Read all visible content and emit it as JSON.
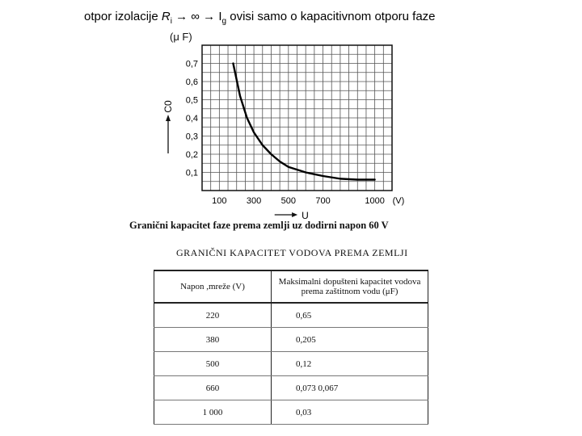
{
  "header": {
    "prefix": "otpor izolacije ",
    "ri": "R",
    "ri_sub": "i",
    "arrow1": " → ∞  → I",
    "ig_sub": "g",
    "rest": " ovisi samo o kapacitivnom otporu faze"
  },
  "chart_data": {
    "type": "line",
    "title": "",
    "ylabel": "C0",
    "yunit": "(μ F)",
    "xlabel": "U",
    "xunit": "(V)",
    "xticks": [
      "100",
      "300",
      "500",
      "700",
      "1000"
    ],
    "yticks": [
      "0,1",
      "0,2",
      "0,3",
      "0,4",
      "0,5",
      "0,6",
      "0,7"
    ],
    "xlim": [
      0,
      1100
    ],
    "ylim": [
      0,
      0.8
    ],
    "grid": true,
    "series": [
      {
        "name": "",
        "x": [
          180,
          220,
          260,
          300,
          350,
          400,
          450,
          500,
          600,
          700,
          800,
          900,
          1000
        ],
        "y": [
          0.7,
          0.52,
          0.4,
          0.32,
          0.25,
          0.2,
          0.16,
          0.13,
          0.1,
          0.08,
          0.065,
          0.06,
          0.06
        ]
      }
    ]
  },
  "chart_caption": "Granični kapacitet faze prema zemlji uz dodirni napon 60 V",
  "table": {
    "title": "GRANIČNI KAPACITET VODOVA PREMA ZEMLJI",
    "headers": [
      "Napon ,mreže (V)",
      "Maksimalni dopušteni kapacitet vodova prema zaštitnom vodu (μF)"
    ],
    "rows": [
      [
        "220",
        "0,65"
      ],
      [
        "380",
        "0,205"
      ],
      [
        "500",
        "0,12"
      ],
      [
        "660",
        "0,073 0,067"
      ],
      [
        "1 000",
        "0,03"
      ]
    ]
  }
}
